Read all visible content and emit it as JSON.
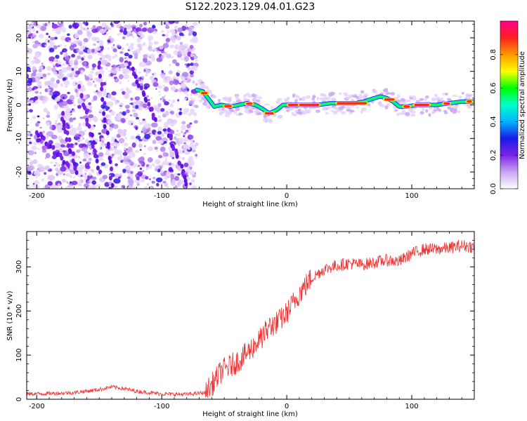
{
  "title": "S122.2023.129.04.01.G23",
  "chart_data": [
    {
      "type": "heatmap",
      "xlabel": "Height of straight line (km)",
      "ylabel": "Frequency (Hz)",
      "xlim": [
        -208,
        150
      ],
      "ylim": [
        -25,
        25
      ],
      "xticks": [
        -200,
        -100,
        0,
        100
      ],
      "yticks": [
        -20,
        -10,
        0,
        10,
        20
      ],
      "colorbar": {
        "label": "Normalized spectral amplitude",
        "range": [
          0.0,
          1.0
        ],
        "ticks": [
          "0.0",
          "0.2",
          "0.4",
          "0.6",
          "0.8"
        ],
        "colors": [
          "#ffffff",
          "#c9a6f2",
          "#7a22e8",
          "#1a1ae6",
          "#00b4ff",
          "#00ffcc",
          "#00ff00",
          "#ffff00",
          "#ff9900",
          "#ff2020",
          "#ff0088"
        ]
      },
      "noise_region_x": [
        -208,
        -72
      ],
      "ridge": {
        "x": [
          -72,
          -67,
          -62,
          -58,
          -52,
          -45,
          -38,
          -32,
          -25,
          -18,
          -14,
          -8,
          -3,
          5,
          15,
          25,
          35,
          45,
          55,
          62,
          70,
          75,
          80,
          85,
          90,
          96,
          104,
          112,
          120,
          130,
          140,
          150
        ],
        "y": [
          4.5,
          4,
          1.5,
          -0.5,
          0,
          -0.5,
          0,
          0.5,
          0,
          -1.5,
          -2.5,
          -1.5,
          0,
          0,
          0,
          0,
          0.5,
          0.5,
          0.5,
          1,
          2,
          2.5,
          2,
          1,
          -0.5,
          -0.5,
          0,
          0,
          0,
          0.5,
          1,
          1
        ]
      }
    },
    {
      "type": "line",
      "xlabel": "Height of straight line (km)",
      "ylabel": "SNR (10 * v/v)",
      "xlim": [
        -208,
        150
      ],
      "ylim": [
        0,
        380
      ],
      "xticks": [
        -200,
        -100,
        0,
        100
      ],
      "yticks": [
        0,
        100,
        200,
        300
      ],
      "color": "#ee3333",
      "x": [
        -208,
        -190,
        -170,
        -150,
        -140,
        -130,
        -120,
        -100,
        -80,
        -65,
        -58,
        -52,
        -45,
        -40,
        -35,
        -30,
        -25,
        -20,
        -15,
        -10,
        -5,
        0,
        10,
        20,
        30,
        40,
        50,
        60,
        70,
        80,
        90,
        100,
        110,
        120,
        130,
        140,
        150
      ],
      "y": [
        12,
        13,
        15,
        22,
        28,
        24,
        18,
        12,
        11,
        15,
        40,
        65,
        75,
        85,
        95,
        110,
        125,
        140,
        160,
        170,
        180,
        195,
        240,
        275,
        295,
        303,
        308,
        305,
        310,
        315,
        312,
        330,
        340,
        340,
        343,
        348,
        345
      ]
    }
  ]
}
